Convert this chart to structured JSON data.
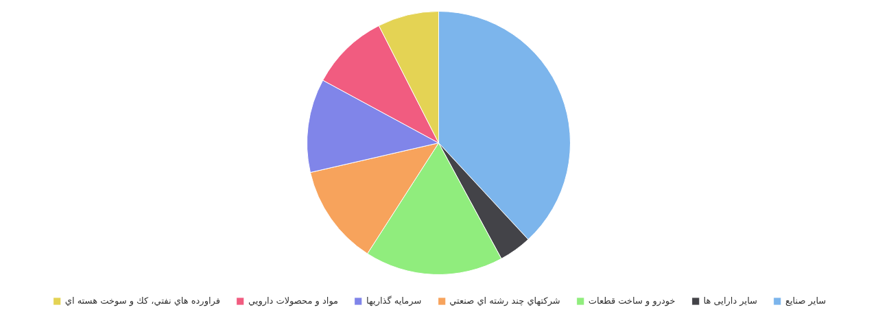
{
  "chart_data": {
    "type": "pie",
    "legend": "bottom",
    "categories": [
      "سایر صنایع",
      "سایر دارایی ها",
      "خودرو و ساخت قطعات",
      "شرکتهاي چند رشته اي صنعتي",
      "سرمايه گذاريها",
      "مواد و محصولات دارويي",
      "فراورده هاي نفتي، كك و سوخت هسته اي"
    ],
    "values": [
      38.1,
      4.0,
      17.0,
      12.3,
      11.5,
      9.6,
      7.5
    ],
    "colors": [
      "#7cb5ec",
      "#434348",
      "#90ed7d",
      "#f7a35c",
      "#8085e9",
      "#f15c80",
      "#e4d354"
    ]
  }
}
